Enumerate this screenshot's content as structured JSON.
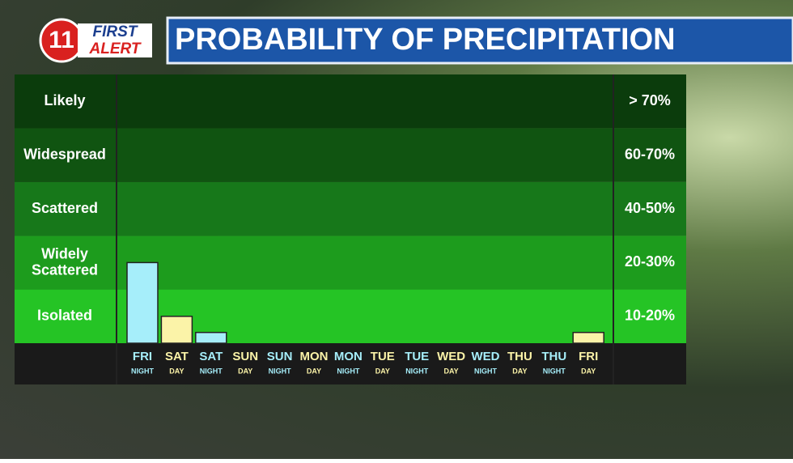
{
  "logo": {
    "number": "11",
    "line1": "FIRST",
    "line2": "ALERT"
  },
  "chart_data": {
    "type": "bar",
    "title": "PROBABILITY OF PRECIPITATION",
    "categories": [
      "FRI",
      "SAT",
      "SAT",
      "SUN",
      "SUN",
      "MON",
      "MON",
      "TUE",
      "TUE",
      "WED",
      "WED",
      "THU",
      "THU",
      "FRI"
    ],
    "sublabels": [
      "NIGHT",
      "DAY",
      "NIGHT",
      "DAY",
      "NIGHT",
      "DAY",
      "NIGHT",
      "DAY",
      "NIGHT",
      "DAY",
      "NIGHT",
      "DAY",
      "NIGHT",
      "DAY"
    ],
    "values": [
      25,
      15,
      12,
      null,
      null,
      null,
      null,
      null,
      null,
      null,
      null,
      null,
      null,
      12
    ],
    "colors": [
      "#a6eefa",
      "#fbf3a8",
      "#a6eefa",
      "#fbf3a8",
      "#a6eefa",
      "#fbf3a8",
      "#a6eefa",
      "#fbf3a8",
      "#a6eefa",
      "#fbf3a8",
      "#a6eefa",
      "#fbf3a8",
      "#a6eefa",
      "#fbf3a8"
    ],
    "bands": [
      {
        "name": "Isolated",
        "label": "10-20%",
        "min": 10,
        "max": 20,
        "color": "#25c425"
      },
      {
        "name": "Widely\nScattered",
        "label": "20-30%",
        "min": 20,
        "max": 30,
        "color": "#1d9c1d"
      },
      {
        "name": "Scattered",
        "label": "40-50%",
        "min": 40,
        "max": 50,
        "color": "#17781a"
      },
      {
        "name": "Widespread",
        "label": "60-70%",
        "min": 60,
        "max": 70,
        "color": "#105411"
      },
      {
        "name": "Likely",
        "label": "> 70%",
        "min": 70,
        "color": "#0b3c0c"
      }
    ]
  }
}
